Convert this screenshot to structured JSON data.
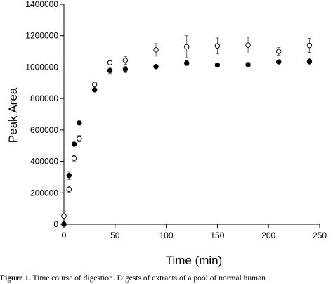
{
  "chart_data": {
    "type": "scatter",
    "xlabel": "Time (min)",
    "ylabel": "Peak Area",
    "xlim": [
      0,
      250
    ],
    "ylim": [
      0,
      1400000
    ],
    "xticks": [
      "0",
      "50",
      "100",
      "150",
      "200",
      "250"
    ],
    "yticks": [
      "0",
      "200000",
      "400000",
      "600000",
      "800000",
      "1000000",
      "1200000",
      "1400000"
    ],
    "series": [
      {
        "marker": "filled-circle",
        "points": [
          {
            "x": 0,
            "y": 0,
            "err": 0
          },
          {
            "x": 5,
            "y": 310000,
            "err": 25000
          },
          {
            "x": 10,
            "y": 510000,
            "err": 10000
          },
          {
            "x": 15,
            "y": 645000,
            "err": 12000
          },
          {
            "x": 30,
            "y": 855000,
            "err": 10000
          },
          {
            "x": 45,
            "y": 978000,
            "err": 20000
          },
          {
            "x": 60,
            "y": 985000,
            "err": 20000
          },
          {
            "x": 90,
            "y": 1003000,
            "err": 8000
          },
          {
            "x": 120,
            "y": 1025000,
            "err": 15000
          },
          {
            "x": 150,
            "y": 1013000,
            "err": 8000
          },
          {
            "x": 180,
            "y": 1015000,
            "err": 15000
          },
          {
            "x": 210,
            "y": 1033000,
            "err": 8000
          },
          {
            "x": 240,
            "y": 1035000,
            "err": 20000
          }
        ]
      },
      {
        "marker": "open-circle",
        "points": [
          {
            "x": 0,
            "y": 52000,
            "err": 0
          },
          {
            "x": 5,
            "y": 222000,
            "err": 20000
          },
          {
            "x": 10,
            "y": 420000,
            "err": 18000
          },
          {
            "x": 15,
            "y": 545000,
            "err": 20000
          },
          {
            "x": 30,
            "y": 890000,
            "err": 15000
          },
          {
            "x": 45,
            "y": 1028000,
            "err": 8000
          },
          {
            "x": 60,
            "y": 1043000,
            "err": 25000
          },
          {
            "x": 90,
            "y": 1110000,
            "err": 40000
          },
          {
            "x": 120,
            "y": 1130000,
            "err": 70000
          },
          {
            "x": 150,
            "y": 1135000,
            "err": 50000
          },
          {
            "x": 180,
            "y": 1140000,
            "err": 50000
          },
          {
            "x": 210,
            "y": 1100000,
            "err": 25000
          },
          {
            "x": 240,
            "y": 1138000,
            "err": 45000
          }
        ]
      }
    ]
  },
  "caption": {
    "label": "Figure 1.",
    "text": " Time course of digestion. Digests of extracts of a pool of normal human"
  }
}
